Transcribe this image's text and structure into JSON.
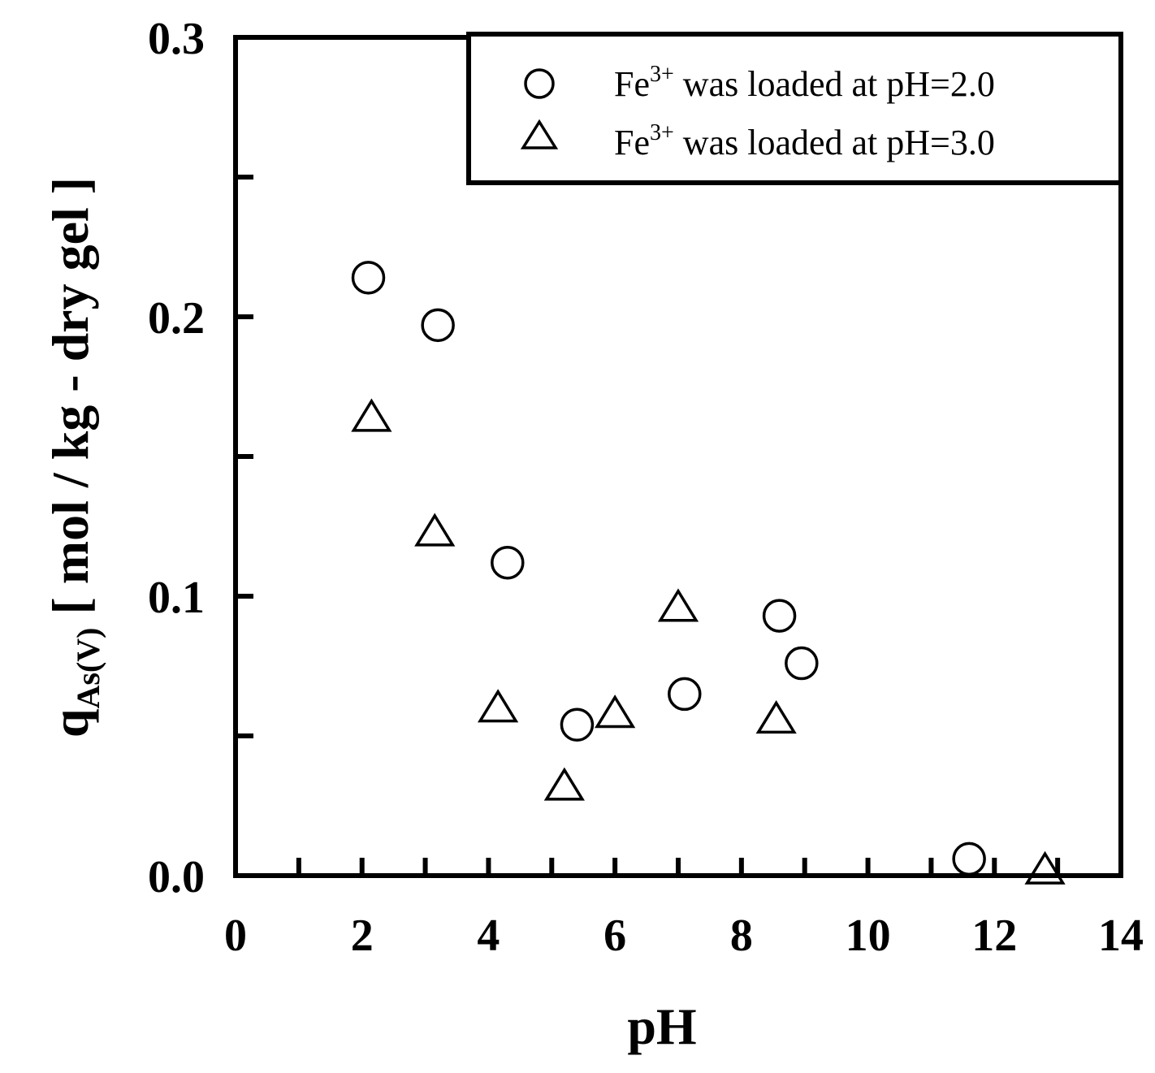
{
  "chart_data": {
    "type": "scatter",
    "xlabel": "pH",
    "ylabel": {
      "main": "q",
      "subscript": "As(V)",
      "unit": " [ mol / kg - dry gel ]"
    },
    "xlim": [
      0,
      14
    ],
    "ylim": [
      0,
      0.3
    ],
    "x_ticks": [
      "0",
      "2",
      "4",
      "6",
      "8",
      "10",
      "12",
      "14"
    ],
    "x_tick_values": [
      0,
      2,
      4,
      6,
      8,
      10,
      12,
      14
    ],
    "y_ticks": [
      "0.0",
      "0.1",
      "0.2",
      "0.3"
    ],
    "y_tick_values": [
      0,
      0.1,
      0.2,
      0.3
    ],
    "x_minor_tick_values": [
      1,
      2,
      3,
      4,
      5,
      6,
      7,
      8,
      9,
      10,
      11,
      12,
      13
    ],
    "y_minor_tick_values": [
      0.05,
      0.1,
      0.15,
      0.2,
      0.25
    ],
    "grid": false,
    "legend_position": "top-right",
    "series": [
      {
        "legend_prefix": "Fe",
        "legend_superscript": "3+",
        "legend_suffix": " was loaded at pH=2.0",
        "marker": "circle",
        "points": [
          {
            "x": 2.1,
            "y": 0.214
          },
          {
            "x": 3.2,
            "y": 0.197
          },
          {
            "x": 4.3,
            "y": 0.112
          },
          {
            "x": 5.4,
            "y": 0.054
          },
          {
            "x": 7.1,
            "y": 0.065
          },
          {
            "x": 8.6,
            "y": 0.093
          },
          {
            "x": 8.95,
            "y": 0.076
          },
          {
            "x": 11.6,
            "y": 0.006
          }
        ]
      },
      {
        "legend_prefix": "Fe",
        "legend_superscript": "3+",
        "legend_suffix": " was loaded at pH=3.0",
        "marker": "triangle",
        "points": [
          {
            "x": 2.15,
            "y": 0.164
          },
          {
            "x": 3.15,
            "y": 0.123
          },
          {
            "x": 4.15,
            "y": 0.06
          },
          {
            "x": 5.2,
            "y": 0.032
          },
          {
            "x": 6.0,
            "y": 0.058
          },
          {
            "x": 7.0,
            "y": 0.096
          },
          {
            "x": 8.55,
            "y": 0.056
          },
          {
            "x": 12.8,
            "y": 0.002
          }
        ]
      }
    ]
  }
}
